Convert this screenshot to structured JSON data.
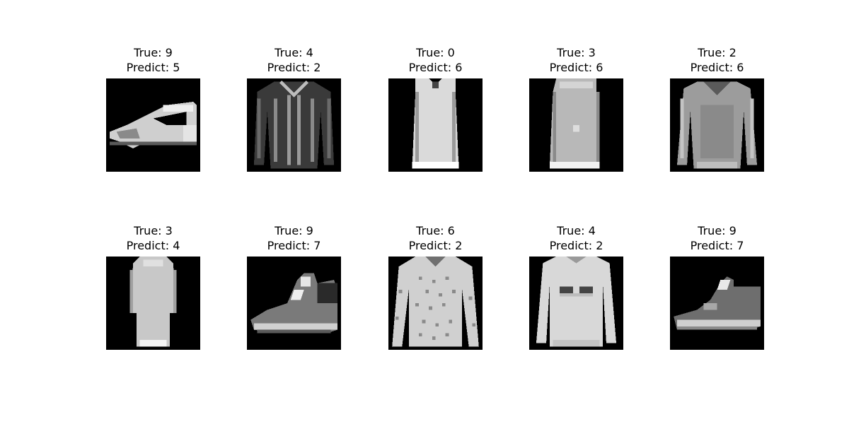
{
  "panels": [
    {
      "true_label": "True: 9",
      "predict_label": "Predict: 5",
      "item": "sandal"
    },
    {
      "true_label": "True: 4",
      "predict_label": "Predict: 2",
      "item": "cardigan"
    },
    {
      "true_label": "True: 0",
      "predict_label": "Predict: 6",
      "item": "tank-top"
    },
    {
      "true_label": "True: 3",
      "predict_label": "Predict: 6",
      "item": "dress"
    },
    {
      "true_label": "True: 2",
      "predict_label": "Predict: 6",
      "item": "pullover"
    },
    {
      "true_label": "True: 3",
      "predict_label": "Predict: 4",
      "item": "long-dress"
    },
    {
      "true_label": "True: 9",
      "predict_label": "Predict: 7",
      "item": "ankle-boot"
    },
    {
      "true_label": "True: 6",
      "predict_label": "Predict: 2",
      "item": "patterned-shirt"
    },
    {
      "true_label": "True: 4",
      "predict_label": "Predict: 2",
      "item": "sweatshirt"
    },
    {
      "true_label": "True: 9",
      "predict_label": "Predict: 7",
      "item": "sneaker"
    }
  ],
  "colors": {
    "background": "#ffffff",
    "image_background": "#000000"
  }
}
